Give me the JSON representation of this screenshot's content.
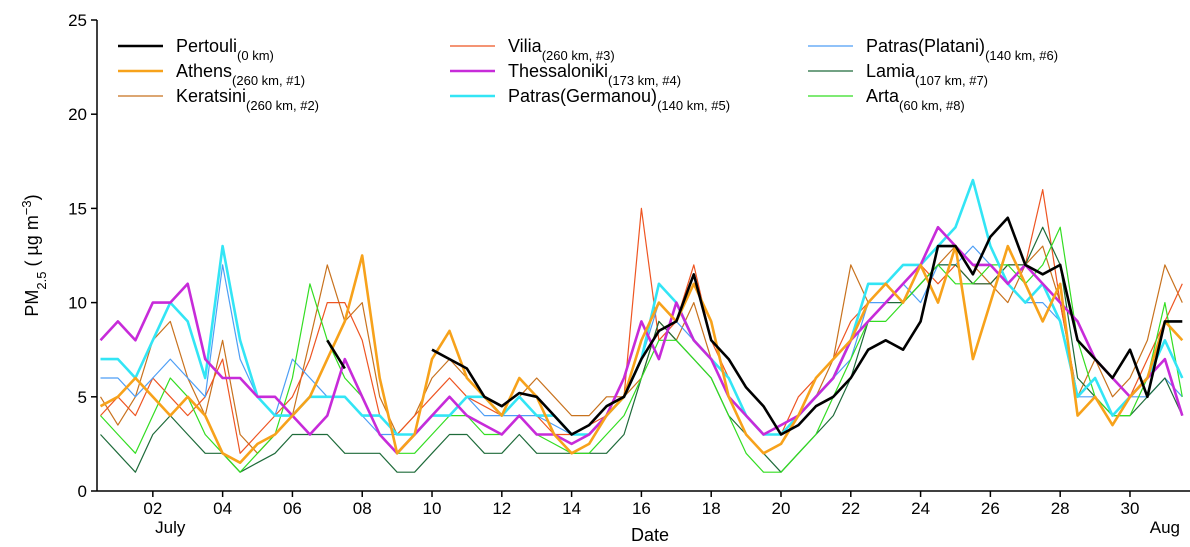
{
  "chart_data": {
    "type": "line",
    "x_label": "Date",
    "y_label_parts": [
      "PM",
      "2.5",
      " ( µg m",
      "−3",
      ")"
    ],
    "x_month_labels": [
      "July",
      "Aug"
    ],
    "xlim": [
      0.4,
      31.72
    ],
    "xticks": [
      {
        "value": 2,
        "label": "02"
      },
      {
        "value": 4,
        "label": "04"
      },
      {
        "value": 6,
        "label": "06"
      },
      {
        "value": 8,
        "label": "08"
      },
      10,
      12,
      14,
      16,
      18,
      20,
      22,
      24,
      26,
      28,
      30
    ],
    "ylim": [
      0,
      25
    ],
    "yticks": [
      0,
      5,
      10,
      15,
      20,
      25
    ],
    "x": [
      0.5,
      1,
      1.5,
      2,
      2.5,
      3,
      3.5,
      4,
      4.5,
      5,
      5.5,
      6,
      6.5,
      7,
      7.5,
      8,
      8.5,
      9,
      9.5,
      10,
      10.5,
      11,
      11.5,
      12,
      12.5,
      13,
      13.5,
      14,
      14.5,
      15,
      15.5,
      16,
      16.5,
      17,
      17.5,
      18,
      18.5,
      19,
      19.5,
      20,
      20.5,
      21,
      21.5,
      22,
      22.5,
      23,
      23.5,
      24,
      24.5,
      25,
      25.5,
      26,
      26.5,
      27,
      27.5,
      28,
      28.5,
      29,
      29.5,
      30,
      30.5,
      31,
      31.5
    ],
    "series": [
      {
        "name": "Keratsini",
        "detail": "(260 km, #2)",
        "color": "#c8721e",
        "width": 1.2,
        "values": [
          5,
          3.5,
          5,
          8,
          9,
          6,
          4,
          8,
          3,
          2,
          3,
          4,
          8,
          12,
          9,
          10,
          5,
          3,
          4,
          6,
          7,
          6,
          5,
          4,
          5,
          6,
          5,
          4,
          4,
          5,
          5,
          6,
          9,
          8,
          10,
          7,
          6,
          4,
          3,
          3,
          4,
          5,
          7,
          12,
          10,
          11,
          10,
          11,
          12,
          13,
          12,
          11,
          10,
          12,
          13,
          10,
          5,
          7,
          5,
          6,
          8,
          12,
          10
        ]
      },
      {
        "name": "Vilia",
        "detail": "(260 km, #3)",
        "color": "#ee5522",
        "width": 1.2,
        "values": [
          4,
          5,
          4,
          6,
          5,
          4,
          5,
          7,
          2,
          3,
          4,
          5,
          7,
          10,
          10,
          8,
          4,
          3,
          4,
          5,
          6,
          5,
          4.5,
          4,
          5,
          4,
          3,
          3,
          3.5,
          4,
          5,
          15,
          8,
          9,
          12,
          8,
          6,
          4,
          3,
          3,
          5,
          6,
          7,
          9,
          10,
          11,
          10,
          12,
          11,
          12,
          11,
          11,
          12,
          12,
          16,
          10,
          5,
          6,
          4,
          5,
          7,
          9,
          11
        ]
      },
      {
        "name": "Patras(Platani)",
        "detail": "(140 km, #6)",
        "color": "#4d9ef5",
        "width": 1.2,
        "values": [
          6,
          6,
          5,
          6,
          7,
          6,
          5,
          12,
          7,
          5,
          4,
          7,
          6,
          5,
          5,
          4,
          3,
          3,
          3,
          4,
          4,
          5,
          4,
          4,
          4,
          4,
          3.5,
          3,
          3,
          4,
          5,
          7,
          10,
          9,
          8,
          7,
          5,
          4,
          3,
          3,
          4,
          5,
          6,
          7,
          10,
          10,
          11,
          10,
          12,
          12,
          13,
          12,
          11,
          10,
          10,
          9,
          5,
          5,
          4,
          5,
          5,
          6,
          5
        ]
      },
      {
        "name": "Lamia",
        "detail": "(107 km, #7)",
        "color": "#1e6b3a",
        "width": 1.2,
        "values": [
          3,
          2,
          1,
          3,
          4,
          3,
          2,
          2,
          1,
          1.5,
          2,
          3,
          3,
          3,
          2,
          2,
          2,
          1,
          1,
          2,
          3,
          3,
          2,
          2,
          3,
          2,
          2,
          2,
          2,
          2,
          3,
          6,
          9,
          8,
          7,
          6,
          4,
          3,
          2,
          1,
          2,
          3,
          4,
          6,
          9,
          10,
          10,
          11,
          12,
          12,
          11,
          11,
          12,
          12,
          14,
          12,
          6,
          5,
          4,
          4,
          5,
          6,
          4
        ]
      },
      {
        "name": "Arta",
        "detail": "(60 km, #8)",
        "color": "#33dd22",
        "width": 1.2,
        "values": [
          4,
          3,
          2,
          4,
          6,
          5,
          3,
          2,
          1,
          2,
          3,
          6,
          11,
          8,
          6,
          5,
          3,
          2,
          2,
          3,
          4,
          4,
          3,
          3,
          4,
          3,
          2.5,
          2,
          2,
          3,
          4,
          6,
          8,
          8,
          7,
          6,
          4,
          2,
          1,
          1,
          2,
          3,
          5,
          7,
          9,
          9,
          10,
          11,
          12,
          11,
          11,
          12,
          12,
          11,
          12,
          14,
          8,
          5,
          4,
          4,
          6,
          10,
          5
        ]
      },
      {
        "name": "Patras(Germanou)",
        "detail": "(140 km, #5)",
        "color": "#33e5f5",
        "width": 2.6,
        "values": [
          7,
          7,
          6,
          8,
          10,
          9,
          6,
          13,
          8,
          5,
          4,
          4,
          5,
          5,
          5,
          4,
          4,
          3,
          3,
          4,
          4,
          5,
          5,
          4,
          5,
          4,
          4,
          3,
          3,
          4,
          5,
          7,
          11,
          10,
          8,
          7,
          6,
          4,
          3,
          3,
          4,
          5,
          6,
          8,
          11,
          11,
          12,
          12,
          13,
          14,
          16.5,
          13,
          11,
          10,
          11,
          9,
          5,
          6,
          4,
          5,
          6,
          8,
          6
        ]
      },
      {
        "name": "Thessaloniki",
        "detail": "(173 km, #4)",
        "color": "#c72bd9",
        "width": 2.6,
        "values": [
          8,
          9,
          8,
          10,
          10,
          11,
          7,
          6,
          6,
          5,
          5,
          4,
          3,
          4,
          7,
          5,
          3,
          2,
          3,
          4,
          5,
          4,
          3.5,
          3,
          4,
          3,
          3,
          2.5,
          3,
          4,
          6,
          9,
          7,
          10,
          8,
          7,
          5,
          4,
          3,
          3.5,
          4,
          5,
          6,
          8,
          9,
          10,
          11,
          12,
          14,
          13,
          12,
          12,
          11,
          12,
          11,
          10,
          9,
          7,
          6,
          5,
          6,
          7,
          4
        ]
      },
      {
        "name": "Athens",
        "detail": "(260 km, #1)",
        "color": "#f7a21b",
        "width": 2.6,
        "values": [
          4.5,
          5,
          6,
          5,
          4,
          5,
          4,
          2,
          1.5,
          2.5,
          3,
          4,
          5,
          7,
          9,
          12.5,
          6,
          2,
          3,
          7,
          8.5,
          6,
          5,
          4,
          6,
          5,
          3,
          2,
          2.5,
          4,
          5,
          8,
          10,
          9,
          11,
          9,
          5,
          3,
          2,
          2.5,
          4,
          6,
          7,
          8,
          10,
          11,
          10,
          12,
          10,
          13,
          7,
          10,
          13,
          11,
          9,
          11,
          4,
          5,
          3.5,
          5,
          6,
          9,
          8
        ]
      },
      {
        "name": "Pertouli",
        "detail": "(0 km)",
        "color": "#000000",
        "width": 2.6,
        "values": [
          null,
          null,
          null,
          null,
          null,
          null,
          null,
          null,
          null,
          null,
          null,
          null,
          null,
          8,
          6.5,
          null,
          null,
          null,
          null,
          7.5,
          7,
          6.5,
          5,
          4.5,
          5.2,
          5,
          4,
          3,
          3.5,
          4.5,
          5,
          7,
          8.5,
          9,
          11.5,
          8,
          7,
          5.5,
          4.5,
          3,
          3.5,
          4.5,
          5,
          6,
          7.5,
          8,
          7.5,
          9,
          13,
          13,
          11.5,
          13.5,
          14.5,
          12,
          11.5,
          12,
          8,
          7,
          6,
          7.5,
          5,
          9,
          9
        ]
      }
    ],
    "legend_order": [
      8,
      7,
      0,
      1,
      6,
      5,
      2,
      3,
      4
    ]
  }
}
